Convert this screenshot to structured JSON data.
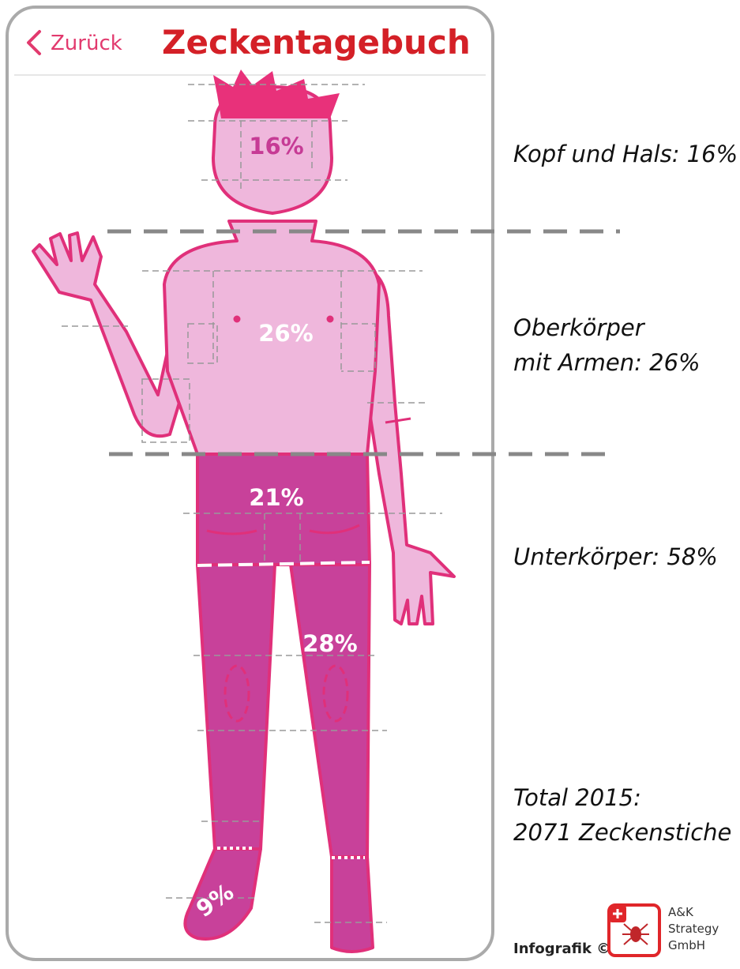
{
  "header": {
    "back": "Zurück",
    "title": "Zeckentagebuch"
  },
  "figure": {
    "labels": [
      "16%",
      "26%",
      "21%",
      "28%",
      "9%"
    ]
  },
  "legend": {
    "items": [
      {
        "lines": [
          "Kopf und Hals: 16%"
        ]
      },
      {
        "lines": [
          "Oberkörper",
          "mit Armen: 26%"
        ]
      },
      {
        "lines": [
          "Unterkörper: 58%"
        ]
      },
      {
        "lines": [
          "Total 2015:",
          "2071 Zeckenstiche"
        ]
      }
    ]
  },
  "footer": {
    "credit": "Infografik ©",
    "logo": [
      "A&K",
      "Strategy",
      "GmbH"
    ]
  }
}
